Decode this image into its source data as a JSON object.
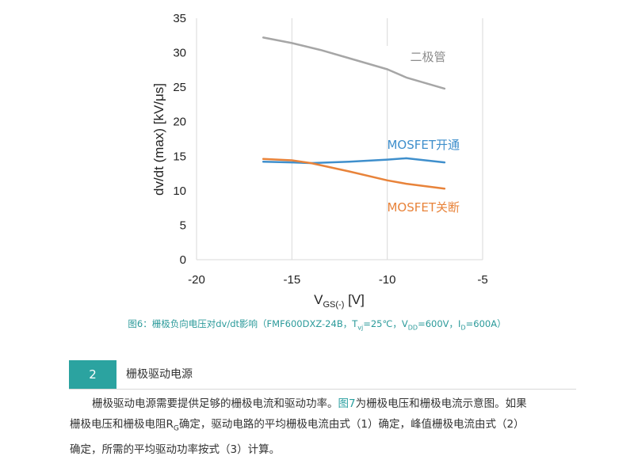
{
  "chart_data": {
    "type": "line",
    "ylabel": "dv/dt (max) [kV/μs]",
    "xlabel_main": "V",
    "xlabel_sub": "GS(-)",
    "xlabel_unit": " [V]",
    "xlim": [
      -20,
      -5
    ],
    "ylim": [
      0,
      35
    ],
    "x_ticks": [
      -20,
      -15,
      -10,
      -5
    ],
    "y_ticks": [
      0,
      5,
      10,
      15,
      20,
      25,
      30,
      35
    ],
    "grid": "vertical",
    "series": [
      {
        "name": "二极管",
        "color": "#a6a6a6",
        "x": [
          -16.5,
          -15,
          -13.5,
          -12,
          -10,
          -9,
          -7
        ],
        "y": [
          32.2,
          31.4,
          30.4,
          29.2,
          27.6,
          26.4,
          24.8
        ]
      },
      {
        "name": "MOSFET开通",
        "color": "#3f8fcc",
        "x": [
          -16.5,
          -15,
          -14,
          -12,
          -10,
          -9,
          -7
        ],
        "y": [
          14.2,
          14.1,
          14.0,
          14.2,
          14.5,
          14.7,
          14.1
        ]
      },
      {
        "name": "MOSFET关断",
        "color": "#e8833a",
        "x": [
          -16.5,
          -15,
          -14,
          -12,
          -10,
          -9,
          -7
        ],
        "y": [
          14.6,
          14.4,
          14.0,
          12.8,
          11.5,
          11.0,
          10.3
        ]
      }
    ]
  },
  "caption": {
    "lead": "图6：栅极负向电压对dv/dt影响（FMF600DXZ-24B，T",
    "tvj_sub": "vj",
    "mid1": "=25℃，V",
    "vdd_sub": "DD",
    "mid2": "=600V，I",
    "id_sub": "D",
    "tail": "=600A）"
  },
  "section": {
    "number": "2",
    "title": "栅极驱动电源"
  },
  "paragraph": {
    "l1_a": "栅极驱动电源需要提供足够的栅极电流和驱动功率。",
    "l1_link": "图7",
    "l1_b": "为栅极电压和栅极电流示意图。如果",
    "l2_a": "栅极电压和栅极电阻R",
    "l2_sub": "G",
    "l2_b": "确定，驱动电路的平均栅极电流由式（1）确定，峰值栅极电流由式（2）",
    "l3": "确定，所需的平均驱动功率按式（3）计算。"
  }
}
